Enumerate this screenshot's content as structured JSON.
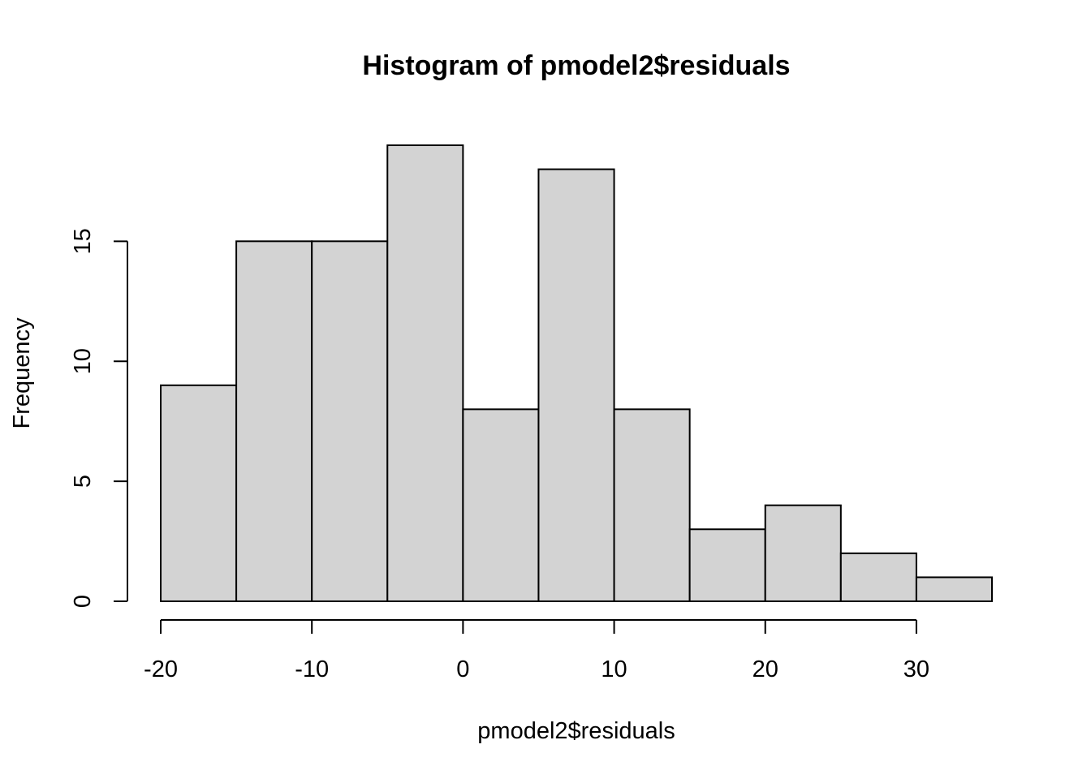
{
  "chart_data": {
    "type": "bar",
    "subtype": "histogram",
    "title": "Histogram of pmodel2$residuals",
    "xlabel": "pmodel2$residuals",
    "ylabel": "Frequency",
    "bin_edges": [
      -20,
      -15,
      -10,
      -5,
      0,
      5,
      10,
      15,
      20,
      25,
      30,
      35
    ],
    "values": [
      9,
      15,
      15,
      19,
      8,
      18,
      8,
      3,
      4,
      2,
      1
    ],
    "xlim": [
      -20,
      35
    ],
    "ylim": [
      0,
      19
    ],
    "x_ticks": [
      -20,
      -10,
      0,
      10,
      20,
      30
    ],
    "x_tick_labels": [
      "-20",
      "-10",
      "0",
      "10",
      "20",
      "30"
    ],
    "y_ticks": [
      0,
      5,
      10,
      15
    ],
    "y_tick_labels": [
      "0",
      "5",
      "10",
      "15"
    ],
    "bar_color": "#d3d3d3",
    "grid": false,
    "legend": "none"
  }
}
